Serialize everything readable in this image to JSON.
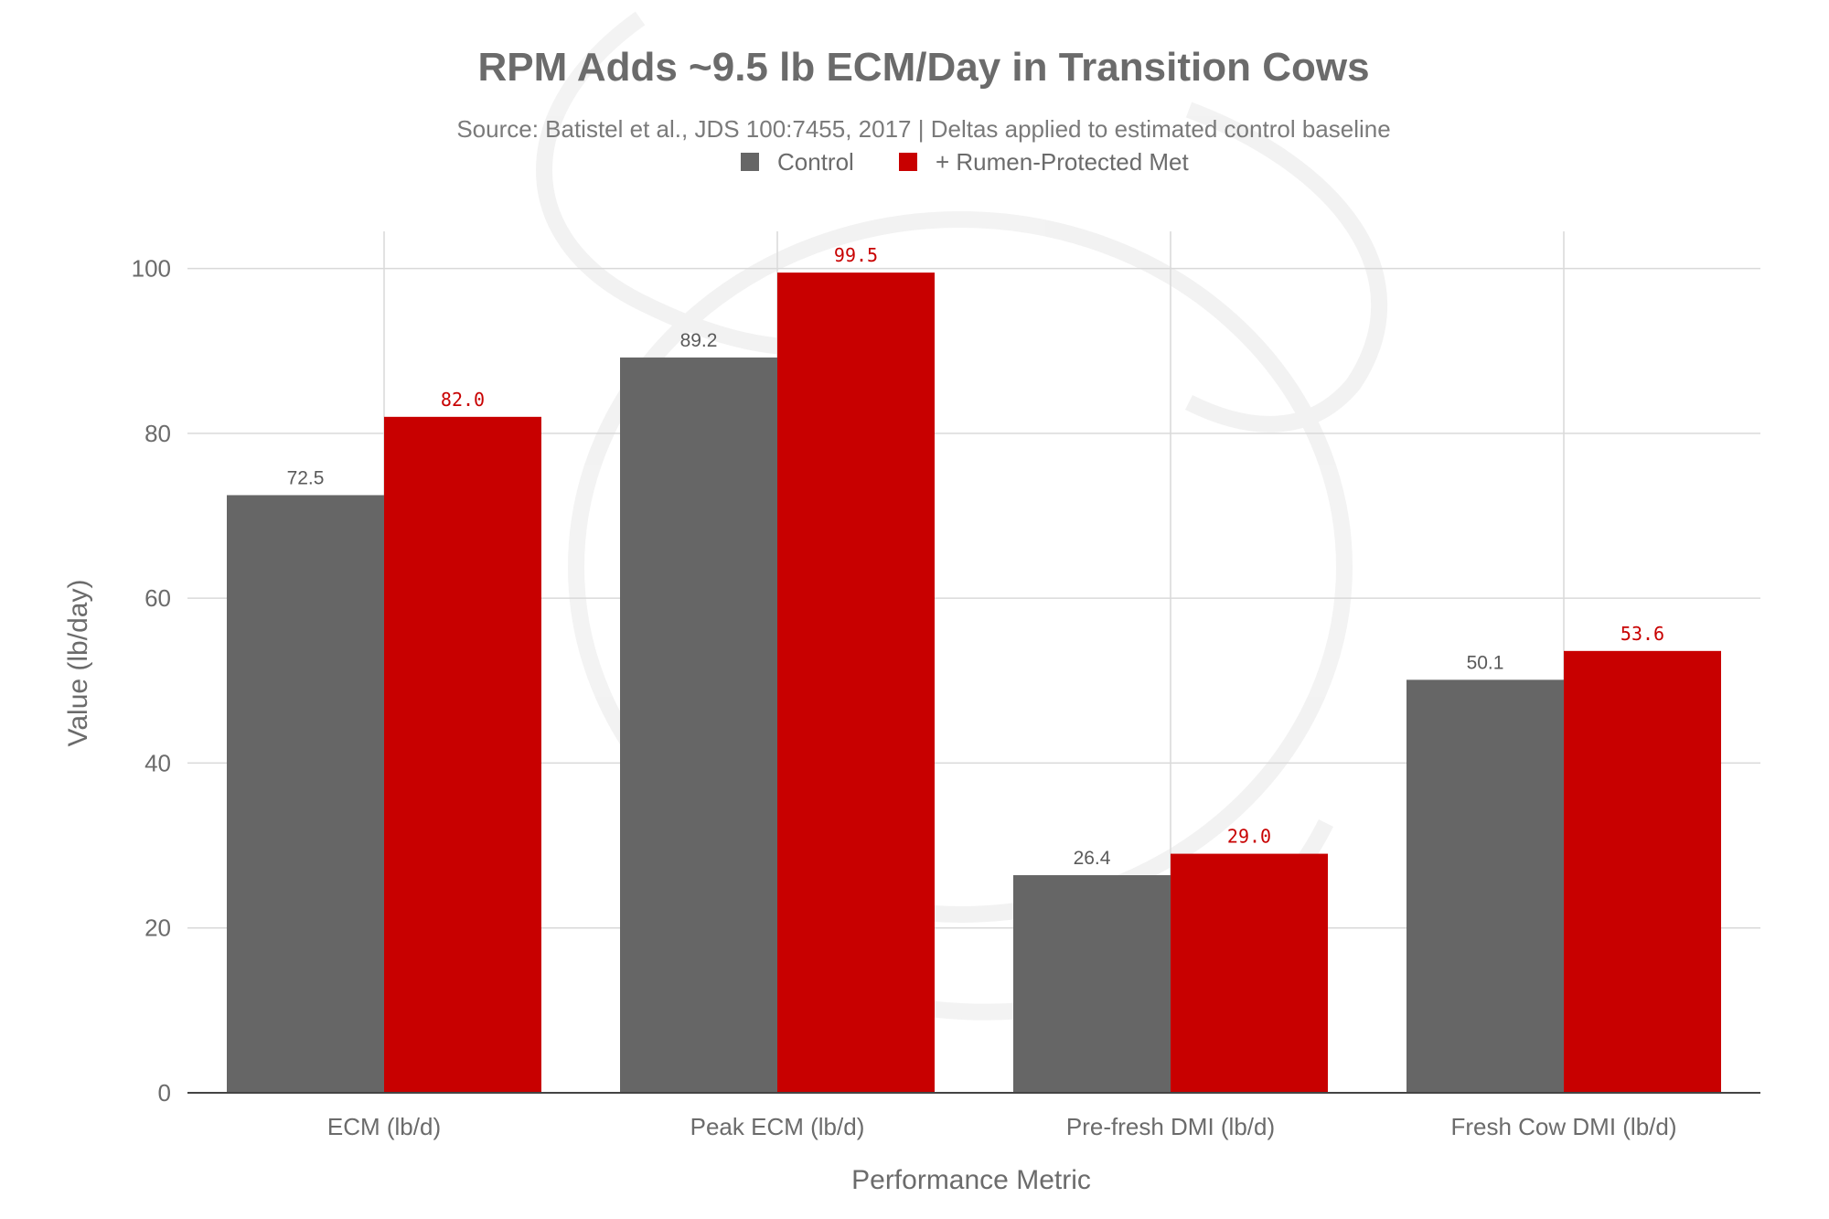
{
  "chart_data": {
    "type": "bar",
    "title": "RPM Adds ~9.5 lb ECM/Day in Transition Cows",
    "subtitle": "Source: Batistel et al., JDS 100:7455, 2017 | Deltas applied to estimated control baseline",
    "xlabel": "Performance Metric",
    "ylabel": "Value (lb/day)",
    "categories": [
      "ECM (lb/d)",
      "Peak ECM (lb/d)",
      "Pre-fresh DMI (lb/d)",
      "Fresh Cow DMI (lb/d)"
    ],
    "series": [
      {
        "name": "Control",
        "values": [
          72.5,
          89.2,
          26.4,
          50.1
        ],
        "labels": [
          "72.5",
          "89.2",
          "26.4",
          "50.1"
        ],
        "color": "#666666"
      },
      {
        "name": "+ Rumen-Protected Met",
        "values": [
          82.0,
          99.5,
          29.0,
          53.6
        ],
        "labels": [
          "82.0",
          "99.5",
          "29.0",
          "53.6"
        ],
        "color": "#c80000"
      }
    ],
    "ylim": [
      0,
      104.5
    ],
    "yticks": [
      0,
      20,
      40,
      60,
      80,
      100
    ],
    "grid": true,
    "legend_position": "top-center"
  }
}
